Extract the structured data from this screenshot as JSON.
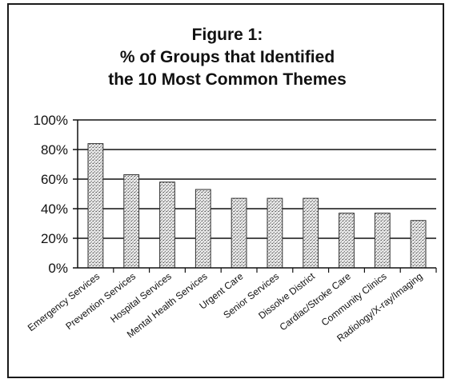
{
  "chart_data": {
    "type": "bar",
    "title": [
      "Figure 1:",
      "% of Groups that Identified",
      "the 10 Most Common Themes"
    ],
    "categories": [
      "Emergency Services",
      "Prevention Services",
      "Hospital Services",
      "Mental Health Services",
      "Urgent Care",
      "Senior Services",
      "Dissolve District",
      "Cardiac/Stroke Care",
      "Community Clinics",
      "Radiology/X-ray/Imaging"
    ],
    "values": [
      84,
      63,
      58,
      53,
      47,
      47,
      47,
      37,
      37,
      32
    ],
    "ylim": [
      0,
      100
    ],
    "yticks": [
      "0%",
      "20%",
      "40%",
      "60%",
      "80%",
      "100%"
    ],
    "ytick_values": [
      0,
      20,
      40,
      60,
      80,
      100
    ],
    "grid": true,
    "legend": "none",
    "bar_color": "#d9d9d9",
    "bar_edge_color": "#333333",
    "gridline_color": "#111111"
  }
}
